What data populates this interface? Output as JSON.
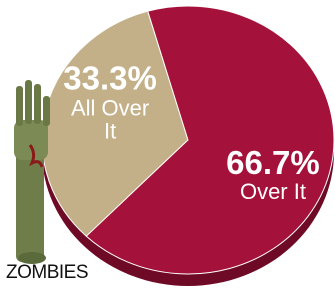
{
  "chart_data": {
    "type": "pie",
    "categories": [
      "All Over It",
      "Over It"
    ],
    "values": [
      33.3,
      66.7
    ],
    "value_labels": [
      "33.3%",
      "66.7%"
    ],
    "colors": [
      "#c4b088",
      "#a4123b"
    ],
    "annotation": "ZOMBIES"
  }
}
